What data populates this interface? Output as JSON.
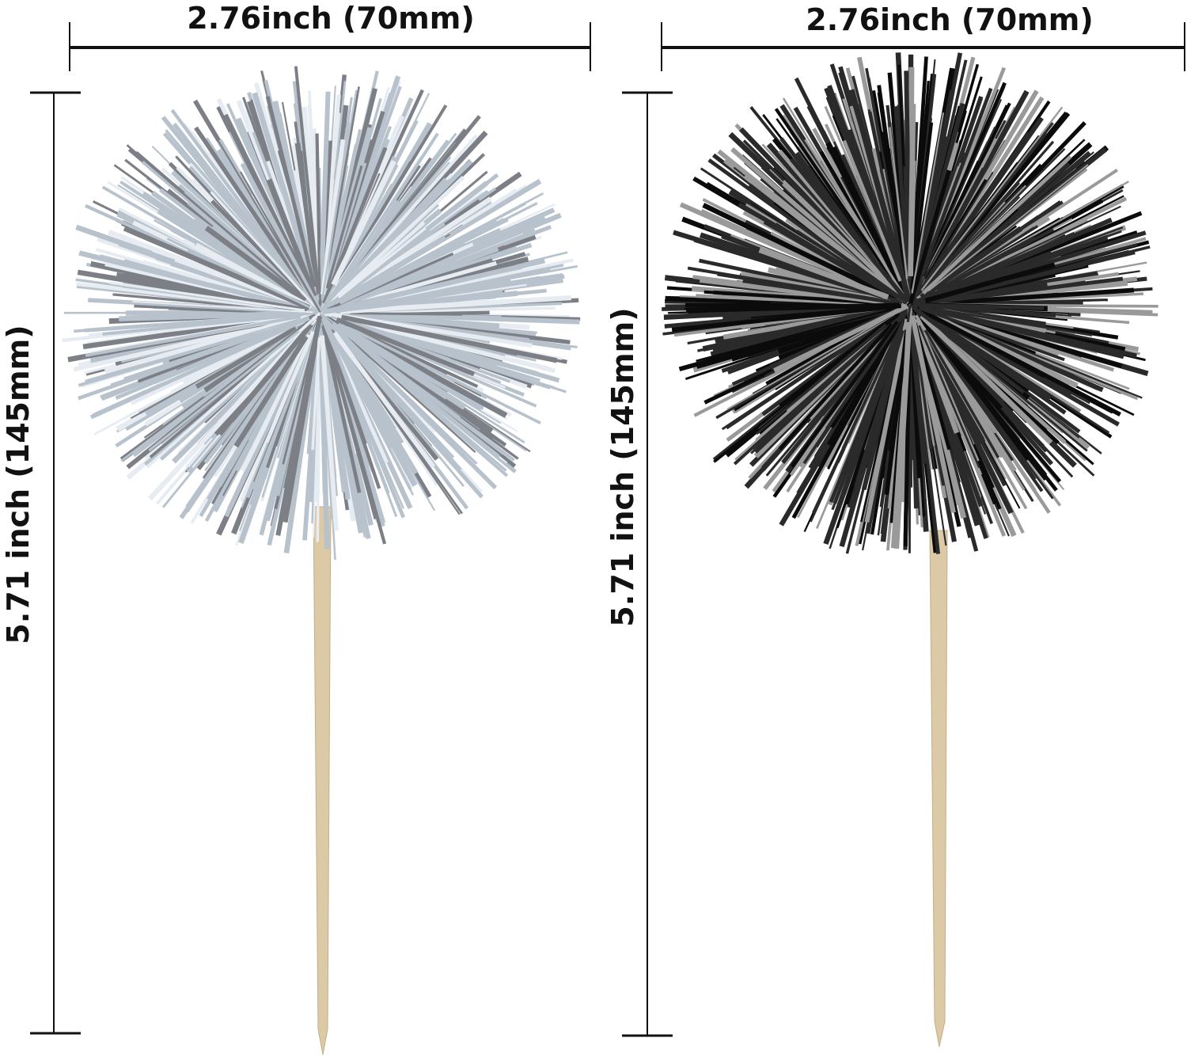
{
  "products": [
    {
      "color_name": "silver",
      "width_label": "2.76inch  (70mm)",
      "height_label": "5.71 inch  (145mm)",
      "colors": {
        "strand_light": "#e6ecf2",
        "strand_mid": "#b8c2cc",
        "strand_dark": "#7d7f86"
      }
    },
    {
      "color_name": "black",
      "width_label": "2.76inch  (70mm)",
      "height_label": "5.71 inch  (145mm)",
      "colors": {
        "strand_light": "#9a9a9a",
        "strand_mid": "#2a2a2a",
        "strand_dark": "#0b0b0b"
      }
    }
  ],
  "stick_color": "#dcc9a6",
  "line_color": "#111111"
}
